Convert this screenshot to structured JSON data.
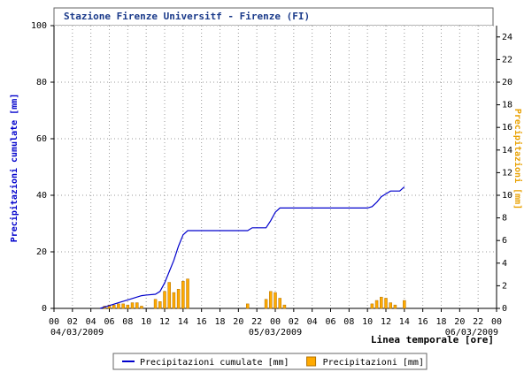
{
  "chart_data": {
    "type": "line",
    "title": "Stazione Firenze Universitf - Firenze (FI)",
    "y_label": "Precipitazioni cumulate [mm]",
    "y2_label": "Precipitazioni [mm]",
    "x_label": "Linea temporale [ore]",
    "xlim": [
      0,
      48
    ],
    "xticks": [
      {
        "value": 0,
        "label": "00"
      },
      {
        "value": 2,
        "label": "02"
      },
      {
        "value": 4,
        "label": "04"
      },
      {
        "value": 6,
        "label": "06"
      },
      {
        "value": 8,
        "label": "08"
      },
      {
        "value": 10,
        "label": "10"
      },
      {
        "value": 12,
        "label": "12"
      },
      {
        "value": 14,
        "label": "14"
      },
      {
        "value": 16,
        "label": "16"
      },
      {
        "value": 18,
        "label": "18"
      },
      {
        "value": 20,
        "label": "20"
      },
      {
        "value": 22,
        "label": "22"
      },
      {
        "value": 24,
        "label": "00"
      },
      {
        "value": 26,
        "label": "02"
      },
      {
        "value": 28,
        "label": "04"
      },
      {
        "value": 30,
        "label": "06"
      },
      {
        "value": 32,
        "label": "08"
      },
      {
        "value": 34,
        "label": "10"
      },
      {
        "value": 36,
        "label": "12"
      },
      {
        "value": 38,
        "label": "14"
      },
      {
        "value": 40,
        "label": "16"
      },
      {
        "value": 42,
        "label": "18"
      },
      {
        "value": 44,
        "label": "20"
      },
      {
        "value": 46,
        "label": "22"
      },
      {
        "value": 48,
        "label": "00"
      }
    ],
    "date_labels": [
      {
        "value": 0,
        "label": "04/03/2009"
      },
      {
        "value": 24,
        "label": "05/03/2009"
      },
      {
        "value": 48,
        "label": "06/03/2009"
      }
    ],
    "ylim": [
      0,
      100
    ],
    "yticks": [
      0,
      20,
      40,
      60,
      80,
      100
    ],
    "y2lim": [
      0,
      25
    ],
    "y2ticks": [
      0,
      2,
      4,
      6,
      8,
      10,
      12,
      14,
      16,
      18,
      20,
      22,
      24
    ],
    "grid": true,
    "series": [
      {
        "name": "Precipitazioni cumulate [mm]",
        "type": "line",
        "color": "#0000cc",
        "x": [
          5,
          6,
          7,
          8,
          9,
          9.5,
          10,
          11,
          11.5,
          12,
          12.5,
          13,
          13.5,
          14,
          14.5,
          15,
          21,
          21.5,
          23,
          23.5,
          24,
          24.5,
          25,
          34,
          34.5,
          35,
          35.5,
          36,
          36.5,
          37,
          37.5,
          38
        ],
        "values": [
          0,
          1,
          2,
          3,
          4,
          4.5,
          4.7,
          5,
          6,
          9,
          13,
          17,
          22,
          26,
          27.5,
          27.5,
          27.5,
          28.5,
          28.5,
          31,
          34,
          35.5,
          35.5,
          35.5,
          36,
          37.5,
          39.5,
          40.5,
          41.5,
          41.5,
          41.5,
          43
        ]
      },
      {
        "name": "Precipitazioni [mm]",
        "type": "bar",
        "axis": "y2",
        "color": "#ffaa00",
        "x": [
          5.5,
          6,
          6.5,
          7,
          7.5,
          8,
          8.5,
          9,
          9.5,
          11,
          11.5,
          12,
          12.5,
          13,
          13.5,
          14,
          14.5,
          21,
          23,
          23.5,
          24,
          24.5,
          25,
          34.5,
          35,
          35.5,
          36,
          36.5,
          37,
          38
        ],
        "values": [
          0.2,
          0.3,
          0.3,
          0.4,
          0.4,
          0.3,
          0.5,
          0.5,
          0.2,
          0.8,
          0.6,
          1.5,
          2.3,
          1.4,
          1.7,
          2.4,
          2.6,
          0.4,
          0.8,
          1.5,
          1.4,
          0.9,
          0.3,
          0.4,
          0.7,
          1.0,
          0.9,
          0.5,
          0.3,
          0.7
        ]
      }
    ]
  }
}
